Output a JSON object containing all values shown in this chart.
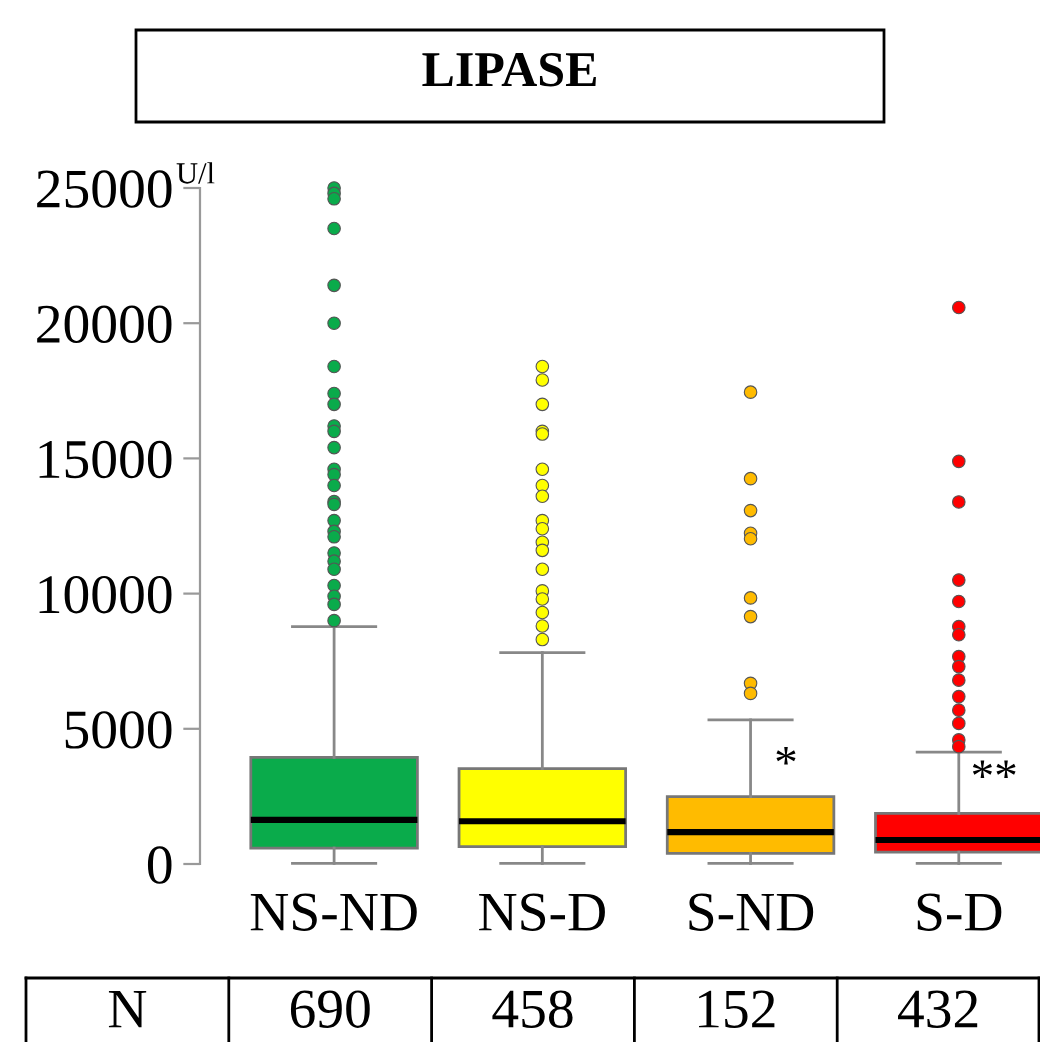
{
  "chart_data": {
    "type": "box",
    "title": "LIPASE",
    "ylabel": "U/l",
    "categories": [
      "NS-ND",
      "NS-D",
      "S-ND",
      "S-D"
    ],
    "colors": [
      "#0aab4b",
      "#ffff00",
      "#ffbb00",
      "#ff0000"
    ],
    "boxes": [
      {
        "low": 20,
        "q1": 590,
        "median": 1630,
        "q3": 3940,
        "high": 8780,
        "outliers": [
          25000,
          24800,
          24600,
          23500,
          21400,
          20000,
          18400,
          17400,
          17000,
          16200,
          16000,
          15400,
          14600,
          14400,
          14000,
          13400,
          13300,
          12700,
          12300,
          12100,
          11500,
          11200,
          10900,
          10300,
          9900,
          9600,
          9000
        ]
      },
      {
        "low": 20,
        "q1": 640,
        "median": 1580,
        "q3": 3530,
        "high": 7820,
        "outliers": [
          18400,
          17900,
          17000,
          16000,
          15900,
          14600,
          14000,
          13600,
          12700,
          12400,
          11900,
          11600,
          10900,
          10100,
          9800,
          9300,
          8800,
          8300
        ]
      },
      {
        "low": 20,
        "q1": 390,
        "median": 1180,
        "q3": 2490,
        "high": 5330,
        "outliers": [
          17450,
          14250,
          13070,
          12230,
          12030,
          9840,
          9150,
          6680,
          6310
        ]
      },
      {
        "low": 20,
        "q1": 440,
        "median": 890,
        "q3": 1870,
        "high": 4140,
        "outliers": [
          20580,
          14890,
          13390,
          10500,
          9710,
          8780,
          8480,
          7670,
          7300,
          6800,
          6190,
          5690,
          5200,
          4590,
          4340
        ]
      }
    ],
    "ylim": [
      0,
      25000
    ],
    "yticks": [
      0,
      5000,
      10000,
      15000,
      20000,
      25000
    ],
    "grid": false,
    "legend": false,
    "annotations": [
      {
        "text": "*",
        "x": "S-ND",
        "y": 3600
      },
      {
        "text": "**",
        "x": "S-D",
        "y": 3100
      },
      "N",
      "690",
      "458",
      "152",
      "432"
    ]
  }
}
